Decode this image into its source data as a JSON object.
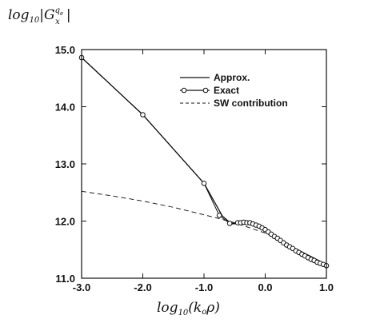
{
  "chart_data": {
    "type": "line",
    "xlim": [
      -3.0,
      1.0
    ],
    "ylim": [
      11.0,
      15.0
    ],
    "x_ticks": [
      {
        "value": -3.0,
        "label": "-3.0"
      },
      {
        "value": -2.0,
        "label": "-2.0"
      },
      {
        "value": -1.0,
        "label": "-1.0"
      },
      {
        "value": 0.0,
        "label": "0.0"
      },
      {
        "value": 1.0,
        "label": "1.0"
      }
    ],
    "y_ticks": [
      {
        "value": 11.0,
        "label": "11.0"
      },
      {
        "value": 12.0,
        "label": "12.0"
      },
      {
        "value": 13.0,
        "label": "13.0"
      },
      {
        "value": 14.0,
        "label": "14.0"
      },
      {
        "value": 15.0,
        "label": "15.0"
      }
    ],
    "xlabel": "log10(koρ)",
    "ylabel": "log10|Gx^qe|",
    "grid": false,
    "legend_position": "top-right",
    "series": [
      {
        "name": "Approx.",
        "style": "solid",
        "x": [
          -3.0,
          -2.0,
          -1.0,
          -0.7,
          -0.55,
          -0.4,
          -0.2,
          0.0,
          0.2,
          0.4,
          0.6,
          0.8,
          1.0
        ],
        "y": [
          14.86,
          13.86,
          12.66,
          12.09,
          11.95,
          11.96,
          11.93,
          11.83,
          11.7,
          11.57,
          11.46,
          11.35,
          11.24
        ]
      },
      {
        "name": "Exact",
        "style": "solid-with-open-circles",
        "x": [
          -3.0,
          -2.0,
          -1.0,
          -0.75,
          -0.58,
          -0.45,
          -0.4,
          -0.35,
          -0.3,
          -0.25,
          -0.2,
          -0.15,
          -0.1,
          -0.05,
          0.0,
          0.05,
          0.1,
          0.15,
          0.2,
          0.25,
          0.3,
          0.35,
          0.4,
          0.45,
          0.5,
          0.55,
          0.6,
          0.65,
          0.7,
          0.75,
          0.8,
          0.85,
          0.9,
          0.95,
          1.0
        ],
        "y": [
          14.86,
          13.86,
          12.66,
          12.1,
          11.96,
          11.97,
          11.97,
          11.98,
          11.97,
          11.97,
          11.95,
          11.93,
          11.91,
          11.88,
          11.85,
          11.81,
          11.77,
          11.73,
          11.7,
          11.66,
          11.62,
          11.58,
          11.55,
          11.52,
          11.48,
          11.45,
          11.42,
          11.39,
          11.36,
          11.33,
          11.31,
          11.28,
          11.26,
          11.24,
          11.22
        ]
      },
      {
        "name": "SW contribution",
        "style": "dashed",
        "x": [
          -3.0,
          -2.5,
          -2.0,
          -1.5,
          -1.0,
          -0.5,
          0.0,
          0.5,
          1.0
        ],
        "y": [
          12.52,
          12.44,
          12.35,
          12.24,
          12.11,
          11.97,
          11.79,
          11.52,
          11.22
        ]
      }
    ]
  }
}
